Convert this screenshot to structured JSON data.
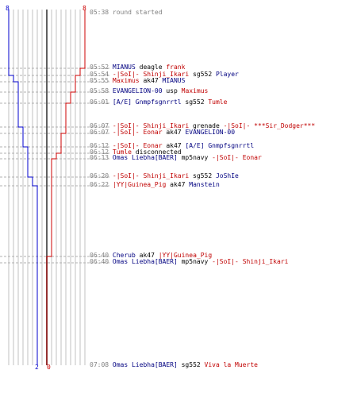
{
  "team_counts": {
    "blue_start": "8",
    "red_start": "8",
    "blue_end": "2",
    "red_end": "0"
  },
  "colors": {
    "blue_team": "#0000cc",
    "red_team": "#cc0000",
    "grid": "#c0c0c0",
    "center_line": "#606060",
    "time": "#808080"
  },
  "events": [
    {
      "time": "05:38",
      "parts": [
        {
          "text": "round started",
          "team": "gray"
        }
      ]
    },
    {
      "time": "05:52",
      "parts": [
        {
          "text": "MIANUS",
          "team": "blue"
        },
        {
          "text": " deagle ",
          "team": "plain"
        },
        {
          "text": "frank",
          "team": "red"
        }
      ]
    },
    {
      "time": "05:54",
      "parts": [
        {
          "text": "-|SoI|- Shinji_Ikari",
          "team": "red"
        },
        {
          "text": " sg552 ",
          "team": "plain"
        },
        {
          "text": "Player",
          "team": "blue"
        }
      ]
    },
    {
      "time": "05:55",
      "parts": [
        {
          "text": "Maximus",
          "team": "red"
        },
        {
          "text": " ak47 ",
          "team": "plain"
        },
        {
          "text": "MIANUS",
          "team": "blue"
        }
      ]
    },
    {
      "time": "05:58",
      "parts": [
        {
          "text": "EVANGELION-00",
          "team": "blue"
        },
        {
          "text": " usp ",
          "team": "plain"
        },
        {
          "text": "Maximus",
          "team": "red"
        }
      ]
    },
    {
      "time": "06:01",
      "parts": [
        {
          "text": "[A/E] Gnmpfsgnrrtl",
          "team": "blue"
        },
        {
          "text": " sg552 ",
          "team": "plain"
        },
        {
          "text": "Tumle",
          "team": "red"
        }
      ]
    },
    {
      "time": "06:07",
      "parts": [
        {
          "text": "-|SoI|- Shinji_Ikari",
          "team": "red"
        },
        {
          "text": " grenade ",
          "team": "plain"
        },
        {
          "text": "-|SoI|- ***Sir_Dodger***",
          "team": "red"
        }
      ]
    },
    {
      "time": "06:07",
      "parts": [
        {
          "text": "-|SoI|- Eonar",
          "team": "red"
        },
        {
          "text": " ak47 ",
          "team": "plain"
        },
        {
          "text": "EVANGELION-00",
          "team": "blue"
        }
      ]
    },
    {
      "time": "06:12",
      "parts": [
        {
          "text": "-|SoI|- Eonar",
          "team": "red"
        },
        {
          "text": " ak47 ",
          "team": "plain"
        },
        {
          "text": "[A/E] Gnmpfsgnrrtl",
          "team": "blue"
        }
      ]
    },
    {
      "time": "06:12",
      "parts": [
        {
          "text": "Tumle",
          "team": "red"
        },
        {
          "text": " disconnected",
          "team": "plain"
        }
      ]
    },
    {
      "time": "06:13",
      "parts": [
        {
          "text": "Omas Liebha[BAER]",
          "team": "blue"
        },
        {
          "text": " mp5navy ",
          "team": "plain"
        },
        {
          "text": "-|SoI|- Eonar",
          "team": "red"
        }
      ]
    },
    {
      "time": "06:20",
      "parts": [
        {
          "text": "-|SoI|- Shinji_Ikari",
          "team": "red"
        },
        {
          "text": " sg552 ",
          "team": "plain"
        },
        {
          "text": "JoShIe",
          "team": "blue"
        }
      ]
    },
    {
      "time": "06:22",
      "parts": [
        {
          "text": "|YY|Guinea_Pig",
          "team": "red"
        },
        {
          "text": " ak47 ",
          "team": "plain"
        },
        {
          "text": "Manstein",
          "team": "blue"
        }
      ]
    },
    {
      "time": "06:40",
      "parts": [
        {
          "text": "Cherub",
          "team": "blue"
        },
        {
          "text": " ak47 ",
          "team": "plain"
        },
        {
          "text": "|YY|Guinea_Pig",
          "team": "red"
        }
      ]
    },
    {
      "time": "06:40",
      "parts": [
        {
          "text": "Omas Liebha[BAER]",
          "team": "blue"
        },
        {
          "text": " mp5navy ",
          "team": "plain"
        },
        {
          "text": "-|SoI|- Shinji_Ikari",
          "team": "red"
        }
      ]
    },
    {
      "time": "07:08",
      "parts": [
        {
          "text": "Omas Liebha[BAER]",
          "team": "blue"
        },
        {
          "text": " sg552 ",
          "team": "plain"
        },
        {
          "text": "Viva la Muerte",
          "team": "red"
        }
      ]
    }
  ]
}
